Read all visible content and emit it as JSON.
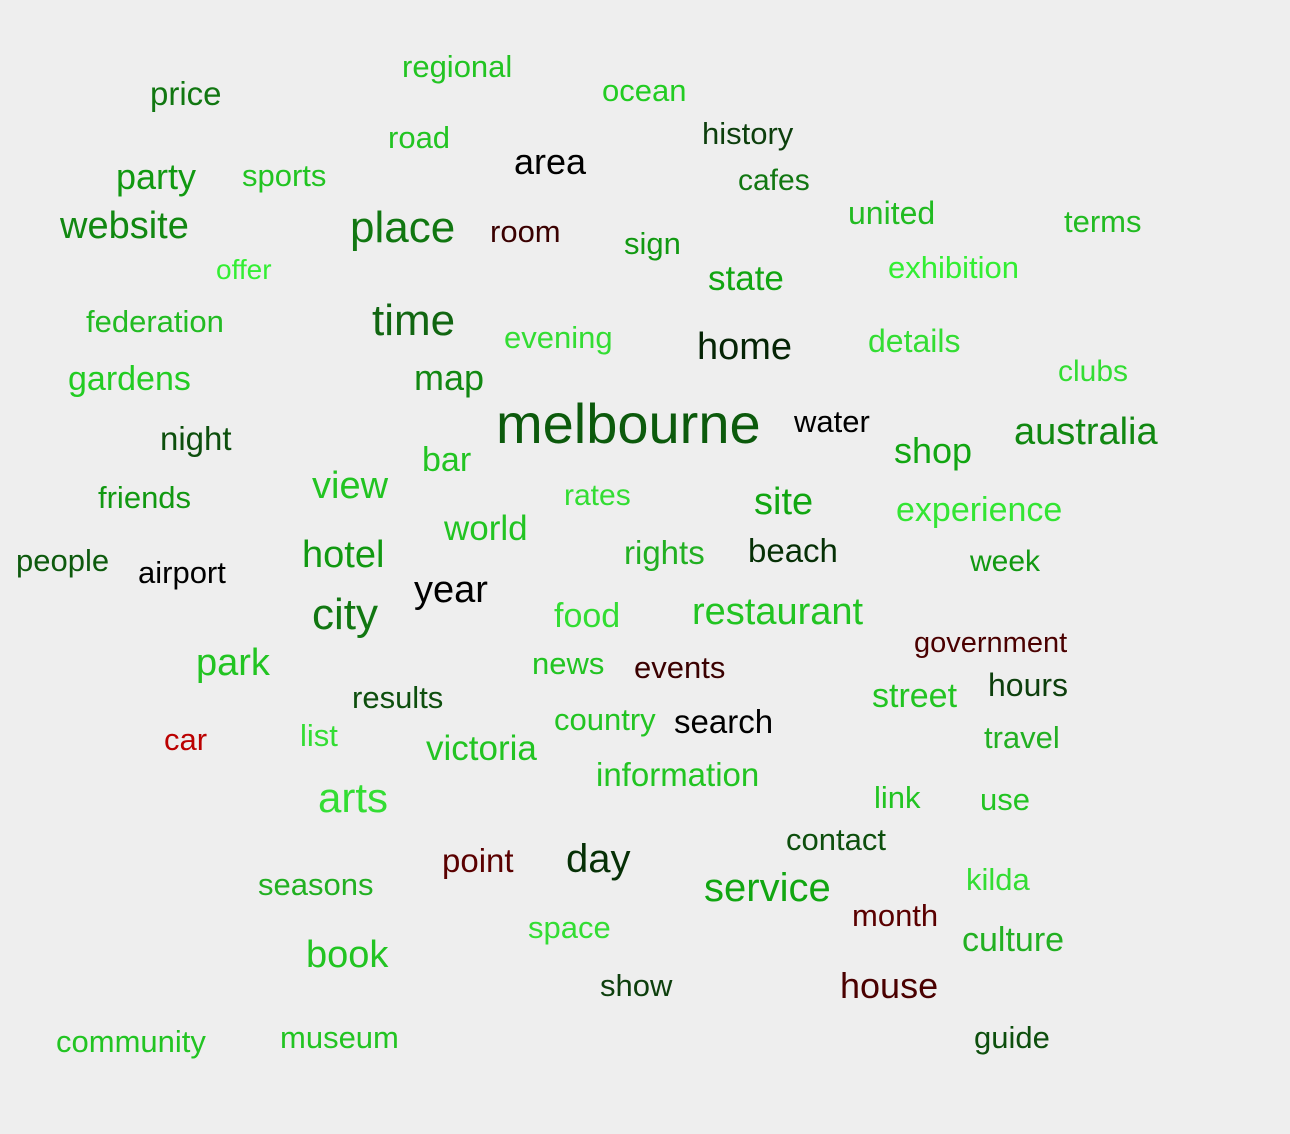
{
  "word_cloud": {
    "words": [
      {
        "text": "regional",
        "color": "#22c422"
      },
      {
        "text": "price",
        "color": "#117711"
      },
      {
        "text": "ocean",
        "color": "#22cc22"
      },
      {
        "text": "road",
        "color": "#22c422"
      },
      {
        "text": "history",
        "color": "#0d3f0d"
      },
      {
        "text": "area",
        "color": "#000000"
      },
      {
        "text": "party",
        "color": "#119911"
      },
      {
        "text": "sports",
        "color": "#22c422"
      },
      {
        "text": "cafes",
        "color": "#117711"
      },
      {
        "text": "united",
        "color": "#22bb22"
      },
      {
        "text": "terms",
        "color": "#22bb22"
      },
      {
        "text": "website",
        "color": "#118811"
      },
      {
        "text": "place",
        "color": "#117711"
      },
      {
        "text": "room",
        "color": "#3a0000"
      },
      {
        "text": "sign",
        "color": "#119911"
      },
      {
        "text": "offer",
        "color": "#33ee33"
      },
      {
        "text": "state",
        "color": "#11a611"
      },
      {
        "text": "exhibition",
        "color": "#33ee33"
      },
      {
        "text": "federation",
        "color": "#22bb22"
      },
      {
        "text": "time",
        "color": "#116611"
      },
      {
        "text": "evening",
        "color": "#33dd33"
      },
      {
        "text": "home",
        "color": "#052405"
      },
      {
        "text": "details",
        "color": "#33dd33"
      },
      {
        "text": "gardens",
        "color": "#22cc22"
      },
      {
        "text": "map",
        "color": "#118811"
      },
      {
        "text": "clubs",
        "color": "#33dd33"
      },
      {
        "text": "melbourne",
        "color": "#0c5a0c"
      },
      {
        "text": "water",
        "color": "#000000"
      },
      {
        "text": "night",
        "color": "#0d4f0d"
      },
      {
        "text": "australia",
        "color": "#118811"
      },
      {
        "text": "bar",
        "color": "#22c422"
      },
      {
        "text": "shop",
        "color": "#11a611"
      },
      {
        "text": "friends",
        "color": "#119911"
      },
      {
        "text": "view",
        "color": "#22c422"
      },
      {
        "text": "rates",
        "color": "#33dd33"
      },
      {
        "text": "site",
        "color": "#11a611"
      },
      {
        "text": "experience",
        "color": "#33e533"
      },
      {
        "text": "world",
        "color": "#22c422"
      },
      {
        "text": "people",
        "color": "#0d5a0d"
      },
      {
        "text": "airport",
        "color": "#000000"
      },
      {
        "text": "hotel",
        "color": "#119911"
      },
      {
        "text": "rights",
        "color": "#22b022"
      },
      {
        "text": "beach",
        "color": "#063006"
      },
      {
        "text": "week",
        "color": "#119911"
      },
      {
        "text": "year",
        "color": "#000000"
      },
      {
        "text": "city",
        "color": "#117711"
      },
      {
        "text": "food",
        "color": "#33dd33"
      },
      {
        "text": "restaurant",
        "color": "#22c422"
      },
      {
        "text": "government",
        "color": "#4a0000"
      },
      {
        "text": "park",
        "color": "#22c422"
      },
      {
        "text": "news",
        "color": "#22c422"
      },
      {
        "text": "events",
        "color": "#3a0000"
      },
      {
        "text": "results",
        "color": "#0d4f0d"
      },
      {
        "text": "street",
        "color": "#22c422"
      },
      {
        "text": "hours",
        "color": "#0d3f0d"
      },
      {
        "text": "car",
        "color": "#bb0000"
      },
      {
        "text": "list",
        "color": "#33dd33"
      },
      {
        "text": "country",
        "color": "#22c422"
      },
      {
        "text": "search",
        "color": "#000000"
      },
      {
        "text": "victoria",
        "color": "#22c422"
      },
      {
        "text": "travel",
        "color": "#22b022"
      },
      {
        "text": "information",
        "color": "#22c422"
      },
      {
        "text": "arts",
        "color": "#33dd33"
      },
      {
        "text": "link",
        "color": "#22c422"
      },
      {
        "text": "use",
        "color": "#22c422"
      },
      {
        "text": "contact",
        "color": "#0d4f0d"
      },
      {
        "text": "seasons",
        "color": "#22b022"
      },
      {
        "text": "point",
        "color": "#5a0000"
      },
      {
        "text": "day",
        "color": "#063006"
      },
      {
        "text": "kilda",
        "color": "#33dd33"
      },
      {
        "text": "service",
        "color": "#11a611"
      },
      {
        "text": "month",
        "color": "#5a0000"
      },
      {
        "text": "space",
        "color": "#33dd33"
      },
      {
        "text": "culture",
        "color": "#22b022"
      },
      {
        "text": "book",
        "color": "#22c422"
      },
      {
        "text": "show",
        "color": "#0d3f0d"
      },
      {
        "text": "house",
        "color": "#4a0000"
      },
      {
        "text": "community",
        "color": "#22c422"
      },
      {
        "text": "museum",
        "color": "#22c422"
      },
      {
        "text": "guide",
        "color": "#0d4f0d"
      }
    ]
  }
}
